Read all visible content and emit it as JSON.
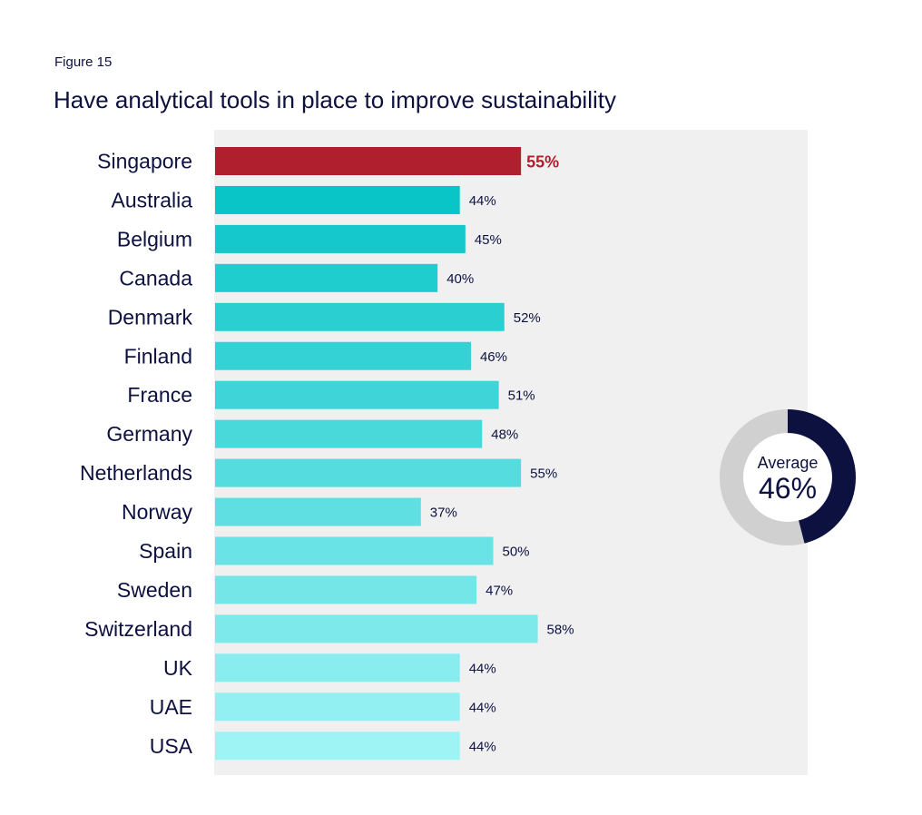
{
  "figure_label": "Figure 15",
  "title": "Have analytical tools in place to improve sustainability",
  "chart_data": {
    "type": "bar",
    "orientation": "horizontal",
    "categories": [
      "Singapore",
      "Australia",
      "Belgium",
      "Canada",
      "Denmark",
      "Finland",
      "France",
      "Germany",
      "Netherlands",
      "Norway",
      "Spain",
      "Sweden",
      "Switzerland",
      "UK",
      "UAE",
      "USA"
    ],
    "values": [
      55,
      44,
      45,
      40,
      52,
      46,
      51,
      48,
      55,
      37,
      50,
      47,
      58,
      44,
      44,
      44
    ],
    "value_labels": [
      "55%",
      "44%",
      "45%",
      "40%",
      "52%",
      "46%",
      "51%",
      "48%",
      "55%",
      "37%",
      "50%",
      "47%",
      "58%",
      "44%",
      "44%",
      "44%"
    ],
    "highlight_category": "Singapore",
    "xlim": [
      0,
      100
    ],
    "grid": false,
    "colors": {
      "highlight": "#b01f2e",
      "bar_start": "#0ac5c8",
      "bar_end": "#9ef3f5",
      "plot_background": "#f0f0f0",
      "text": "#0d1140"
    },
    "average": {
      "caption": "Average",
      "label": "46%",
      "value": 46,
      "colors": {
        "fill": "#0d1140",
        "track": "#d0d0d0"
      }
    }
  }
}
